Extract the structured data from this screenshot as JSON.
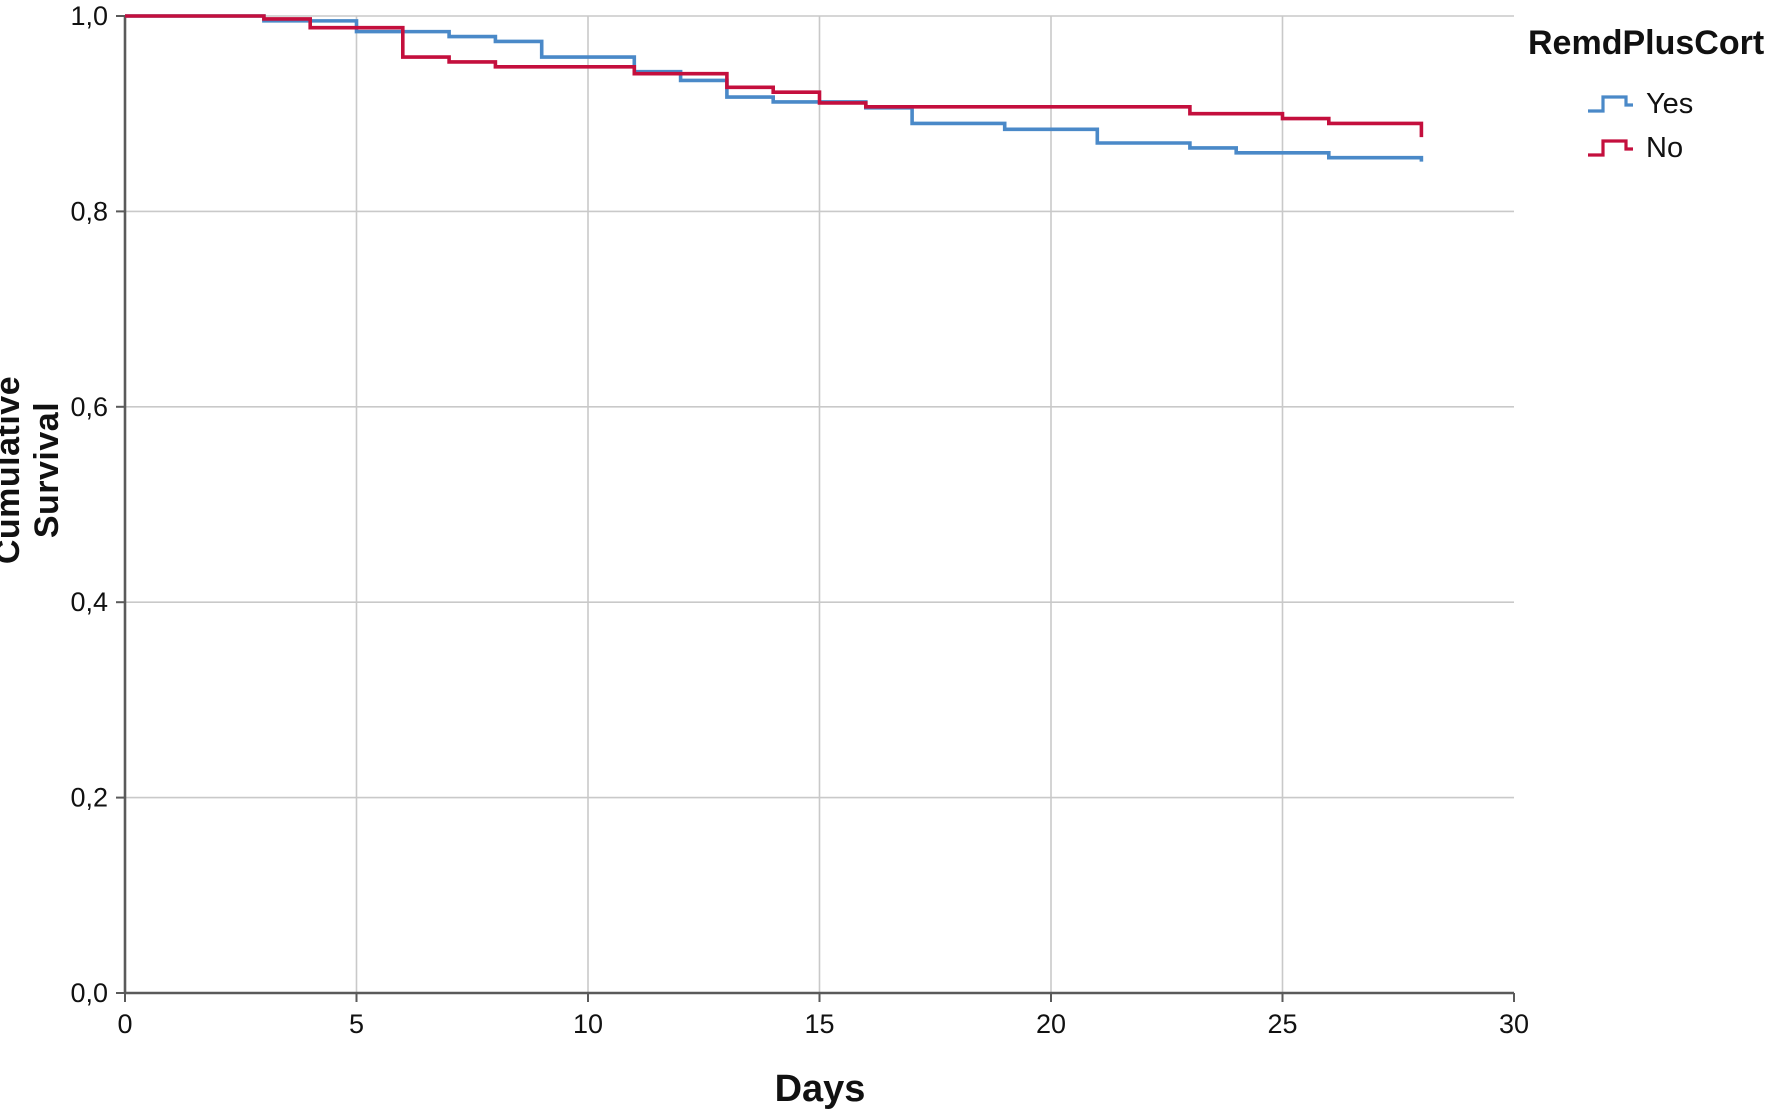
{
  "chart_data": {
    "type": "line",
    "subtype": "kaplan-meier-step",
    "title": "",
    "xlabel": "Days",
    "ylabel": "Cumulative Survival",
    "xlim": [
      0,
      30
    ],
    "ylim": [
      0.0,
      1.0
    ],
    "grid": true,
    "x_tick_values": [
      0,
      5,
      10,
      15,
      20,
      25,
      30
    ],
    "x_tick_labels": [
      "0",
      "5",
      "10",
      "15",
      "20",
      "25",
      "30"
    ],
    "y_tick_values": [
      0.0,
      0.2,
      0.4,
      0.6,
      0.8,
      1.0
    ],
    "y_tick_labels": [
      "0,0",
      "0,2",
      "0,4",
      "0,6",
      "0,8",
      "1,0"
    ],
    "legend": {
      "title": "RemdPlusCort",
      "position": "right",
      "entries": [
        {
          "label": "Yes",
          "color": "#4a89c8"
        },
        {
          "label": "No",
          "color": "#c40f3d"
        }
      ]
    },
    "series": [
      {
        "name": "Yes",
        "color": "#4a89c8",
        "points": [
          [
            0,
            1.0
          ],
          [
            3,
            0.995
          ],
          [
            5,
            0.984
          ],
          [
            7,
            0.979
          ],
          [
            8,
            0.974
          ],
          [
            9,
            0.958
          ],
          [
            11,
            0.943
          ],
          [
            12,
            0.934
          ],
          [
            13,
            0.917
          ],
          [
            14,
            0.912
          ],
          [
            16,
            0.906
          ],
          [
            17,
            0.89
          ],
          [
            19,
            0.884
          ],
          [
            21,
            0.87
          ],
          [
            23,
            0.865
          ],
          [
            24,
            0.86
          ],
          [
            26,
            0.855
          ],
          [
            28,
            0.851
          ]
        ]
      },
      {
        "name": "No",
        "color": "#c40f3d",
        "points": [
          [
            0,
            1.0
          ],
          [
            3,
            0.997
          ],
          [
            4,
            0.988
          ],
          [
            6,
            0.958
          ],
          [
            7,
            0.953
          ],
          [
            8,
            0.948
          ],
          [
            11,
            0.941
          ],
          [
            13,
            0.927
          ],
          [
            14,
            0.922
          ],
          [
            15,
            0.911
          ],
          [
            16,
            0.907
          ],
          [
            23,
            0.9
          ],
          [
            25,
            0.895
          ],
          [
            26,
            0.89
          ],
          [
            28,
            0.876
          ]
        ]
      }
    ],
    "style": {
      "grid_color": "#c9c9c9",
      "axis_color": "#5a5a5a",
      "tick_text_color": "#111111",
      "background": "#ffffff"
    }
  }
}
